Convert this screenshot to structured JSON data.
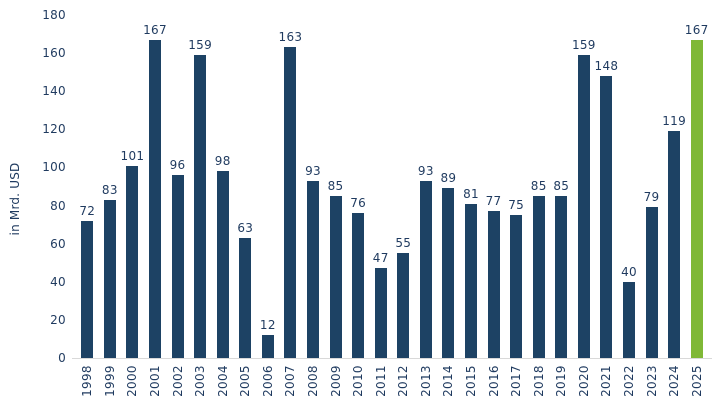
{
  "chart_data": {
    "type": "bar",
    "title": "",
    "xlabel": "",
    "ylabel": "in Mrd. USD",
    "ylim": [
      0,
      180
    ],
    "ytick_step": 20,
    "grid": false,
    "legend": false,
    "categories": [
      "1998",
      "1999",
      "2000",
      "2001",
      "2002",
      "2003",
      "2004",
      "2005",
      "2006",
      "2007",
      "2008",
      "2009",
      "2010",
      "2011",
      "2012",
      "2013",
      "2014",
      "2015",
      "2016",
      "2017",
      "2018",
      "2019",
      "2020",
      "2021",
      "2022",
      "2023",
      "2024",
      "2025"
    ],
    "values": [
      72,
      83,
      101,
      167,
      96,
      159,
      98,
      63,
      12,
      163,
      93,
      85,
      76,
      47,
      55,
      93,
      89,
      81,
      77,
      75,
      85,
      85,
      159,
      148,
      40,
      79,
      119,
      167
    ],
    "data_labels_shown": true,
    "colors": {
      "bar": "#1d4264",
      "highlight_bar": "#7fb836",
      "text": "#1f3a5f",
      "axis_line": "#d9d9d9"
    },
    "highlight_index": 27
  }
}
